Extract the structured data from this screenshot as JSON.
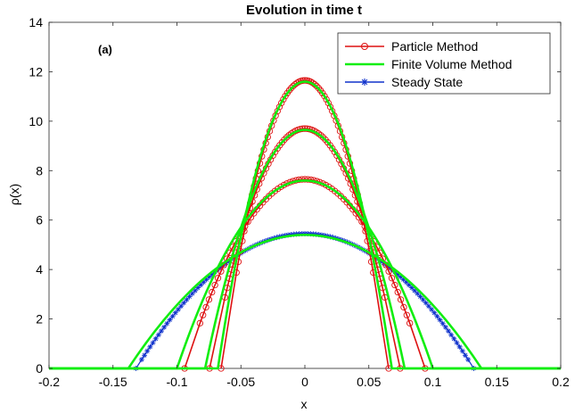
{
  "chart_data": {
    "type": "line",
    "title": "Evolution in time t",
    "panel_label": "(a)",
    "xlabel": "x",
    "ylabel": "ρ(x)",
    "xlim": [
      -0.2,
      0.2
    ],
    "ylim": [
      0,
      14
    ],
    "xticks": [
      -0.2,
      -0.15,
      -0.1,
      -0.05,
      0,
      0.05,
      0.1,
      0.15,
      0.2
    ],
    "xtick_labels": [
      "-0.2",
      "-0.15",
      "-0.1",
      "-0.05",
      "0",
      "0.05",
      "0.1",
      "0.15",
      "0.2"
    ],
    "yticks": [
      0,
      2,
      4,
      6,
      8,
      10,
      12,
      14
    ],
    "ytick_labels": [
      "0",
      "2",
      "4",
      "6",
      "8",
      "10",
      "12",
      "14"
    ],
    "grid": false,
    "legend_position": "top-right",
    "legend": [
      {
        "name": "Particle Method",
        "color": "#dd1111",
        "marker": "circle"
      },
      {
        "name": "Finite Volume Method",
        "color": "#11ee11",
        "marker": "none"
      },
      {
        "name": "Steady State",
        "color": "#1133cc",
        "marker": "asterisk"
      }
    ],
    "series": [
      {
        "name": "Particle Method",
        "profile_peak": 11.65,
        "support_half_width": 0.0655,
        "x_end_points": [
          -0.0655,
          0.0655
        ],
        "end_values": [
          0,
          0
        ]
      },
      {
        "name": "Particle Method",
        "profile_peak": 9.7,
        "support_half_width": 0.0745,
        "x_end_points": [
          -0.0745,
          0.0745
        ],
        "end_values": [
          0,
          0
        ]
      },
      {
        "name": "Particle Method",
        "profile_peak": 7.65,
        "support_half_width": 0.094,
        "x_end_points": [
          -0.094,
          0.094
        ],
        "end_values": [
          0,
          0
        ]
      },
      {
        "name": "Finite Volume Method",
        "profile_peak": 11.6,
        "support_half_width": 0.068
      },
      {
        "name": "Finite Volume Method",
        "profile_peak": 9.65,
        "support_half_width": 0.078
      },
      {
        "name": "Finite Volume Method",
        "profile_peak": 7.6,
        "support_half_width": 0.1
      },
      {
        "name": "Finite Volume Method",
        "profile_peak": 5.4,
        "support_half_width": 0.138
      },
      {
        "name": "Steady State",
        "profile_peak": 5.45,
        "support_half_width": 0.132,
        "x_end_points": [
          -0.132,
          0.132
        ],
        "end_values": [
          0,
          0
        ]
      }
    ],
    "colors": {
      "particle": "#dd1111",
      "fvm": "#11ee11",
      "steady": "#1133cc",
      "axis": "#262626"
    }
  }
}
